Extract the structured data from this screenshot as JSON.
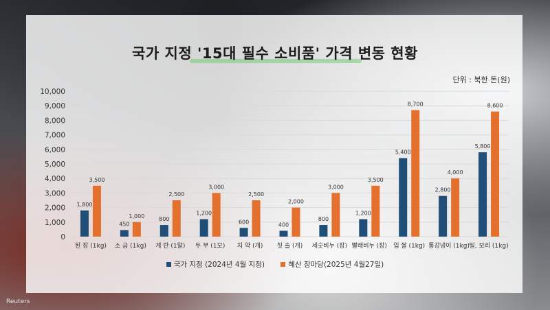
{
  "credit": "Reuters",
  "colors": {
    "series1": "#1f4e79",
    "series2": "#e4702e",
    "grid": "#d9d9d9"
  },
  "chart_data": {
    "type": "bar",
    "title": "국가 지정 '15대 필수 소비품' 가격 변동 현황",
    "unit_label": "단위 : 북한 돈(원)",
    "categories": [
      "된 장 (1kg)",
      "소 금 (1kg)",
      "계 란 (1알)",
      "두 부 (1모)",
      "치 약 (개)",
      "칫 솔 (개)",
      "세숫비누 (장)",
      "빨래비누 (장)",
      "입 쌀 (1kg)",
      "통강냉이 (1kg)",
      "밀, 보리 (1kg)"
    ],
    "series": [
      {
        "name": "국가 지정 (2024년 4월 지정)",
        "values": [
          1800,
          450,
          800,
          1200,
          600,
          400,
          800,
          1200,
          5400,
          2800,
          5800
        ]
      },
      {
        "name": "혜산 장마당(2025년 4월27일)",
        "values": [
          3500,
          1000,
          2500,
          3000,
          2500,
          2000,
          3000,
          3500,
          8700,
          4000,
          8600
        ]
      }
    ],
    "value_labels": [
      [
        "1,800",
        "450",
        "800",
        "1,200",
        "600",
        "400",
        "800",
        "1,200",
        "5,400",
        "2,800",
        "5,800"
      ],
      [
        "3,500",
        "1,000",
        "2,500",
        "3,000",
        "2,500",
        "2,000",
        "3,000",
        "3,500",
        "8,700",
        "4,000",
        "8,600"
      ]
    ],
    "ylim": [
      0,
      10000
    ],
    "yticks": [
      0,
      1000,
      2000,
      3000,
      4000,
      5000,
      6000,
      7000,
      8000,
      9000,
      10000
    ],
    "ytick_labels": [
      "0",
      "1,000",
      "2,000",
      "3,000",
      "4,000",
      "5,000",
      "6,000",
      "7,000",
      "8,000",
      "9,000",
      "10,000"
    ],
    "grid": true,
    "legend": "bottom"
  }
}
